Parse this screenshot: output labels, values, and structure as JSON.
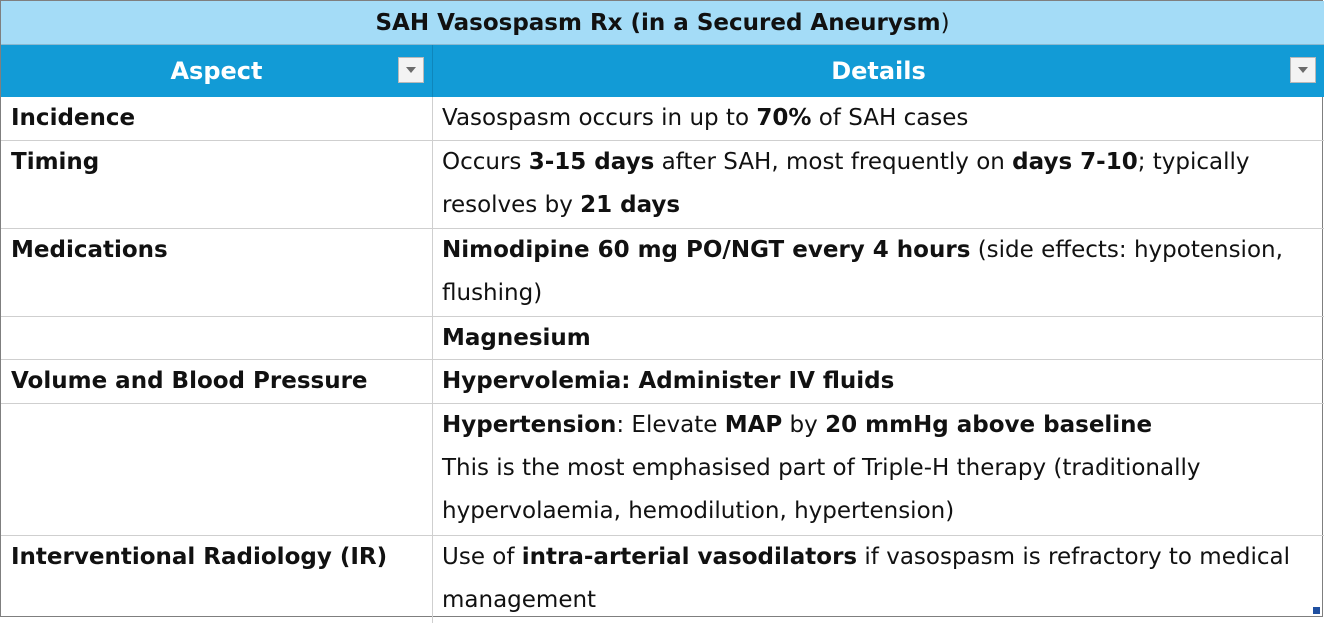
{
  "title": {
    "bold_part": "SAH Vasospasm Rx (in a Secured Aneurysm",
    "normal_part": ")"
  },
  "headers": {
    "aspect": "Aspect",
    "details": "Details"
  },
  "rows": {
    "r0": {
      "aspect": "Incidence",
      "d1": "Vasospasm occurs in up to ",
      "d2": "70%",
      "d3": " of SAH cases"
    },
    "r1": {
      "aspect": "Timing",
      "d1": "Occurs ",
      "d2": "3-15 days",
      "d3": " after SAH, most frequently on ",
      "d4": "days 7-10",
      "d5": "; typically resolves by ",
      "d6": "21 days"
    },
    "r2": {
      "aspect": "Medications",
      "d1": "Nimodipine 60 mg PO/NGT every 4 hours",
      "d2": " (side effects: hypotension, flushing)"
    },
    "r3": {
      "aspect": "",
      "d1": "Magnesium"
    },
    "r4": {
      "aspect": "Volume and Blood Pressure",
      "d1": "Hypervolemia: Administer IV fluids"
    },
    "r5": {
      "aspect": "",
      "d1": "Hypertension",
      "d2": ": Elevate ",
      "d3": "MAP",
      "d4": " by ",
      "d5": "20 mmHg above baseline",
      "d6": "This is the most emphasised part of Triple-H therapy (traditionally hypervolaemia, hemodilution, hypertension)"
    },
    "r6": {
      "aspect": "Interventional Radiology (IR)",
      "d1": "Use of ",
      "d2": "intra-arterial vasodilators",
      "d3": " if vasospasm is refractory to medical management"
    }
  },
  "colors": {
    "title_bg": "#a4dcf7",
    "header_bg": "#129bd6",
    "header_text": "#ffffff"
  }
}
